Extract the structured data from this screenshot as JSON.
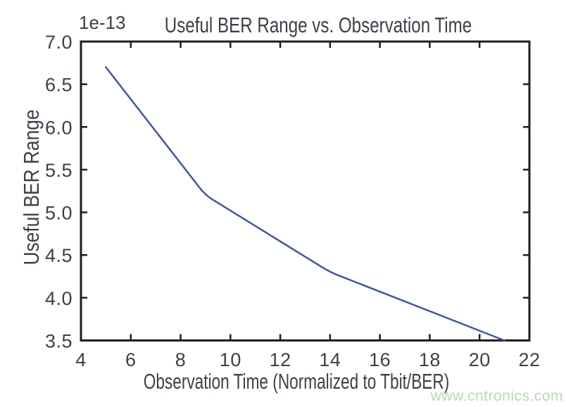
{
  "chart_data": {
    "type": "line",
    "title": "Useful BER Range vs. Observation Time",
    "xlabel": "Observation Time (Normalized to Tbit/BER)",
    "ylabel": "Useful BER Range",
    "offset_label": "1e-13",
    "x": [
      5,
      9,
      14,
      21
    ],
    "y": [
      6.7,
      5.2,
      4.3,
      3.5
    ],
    "y_unit_note": "y values are multiples of 1e-13",
    "xlim": [
      4,
      22
    ],
    "ylim": [
      3.5,
      7.0
    ],
    "xtick_labels": [
      "4",
      "6",
      "8",
      "10",
      "12",
      "14",
      "16",
      "18",
      "20",
      "22"
    ],
    "ytick_labels": [
      "3.5",
      "4.0",
      "4.5",
      "5.0",
      "5.5",
      "6.0",
      "6.5",
      "7.0"
    ],
    "grid": false,
    "legend_position": "none",
    "line_color": "#4155a8",
    "axis_color": "#211e1b",
    "text_color": "#3c4049"
  },
  "watermark": {
    "text": "www.cntronics.com",
    "color": "#b6dcae"
  }
}
